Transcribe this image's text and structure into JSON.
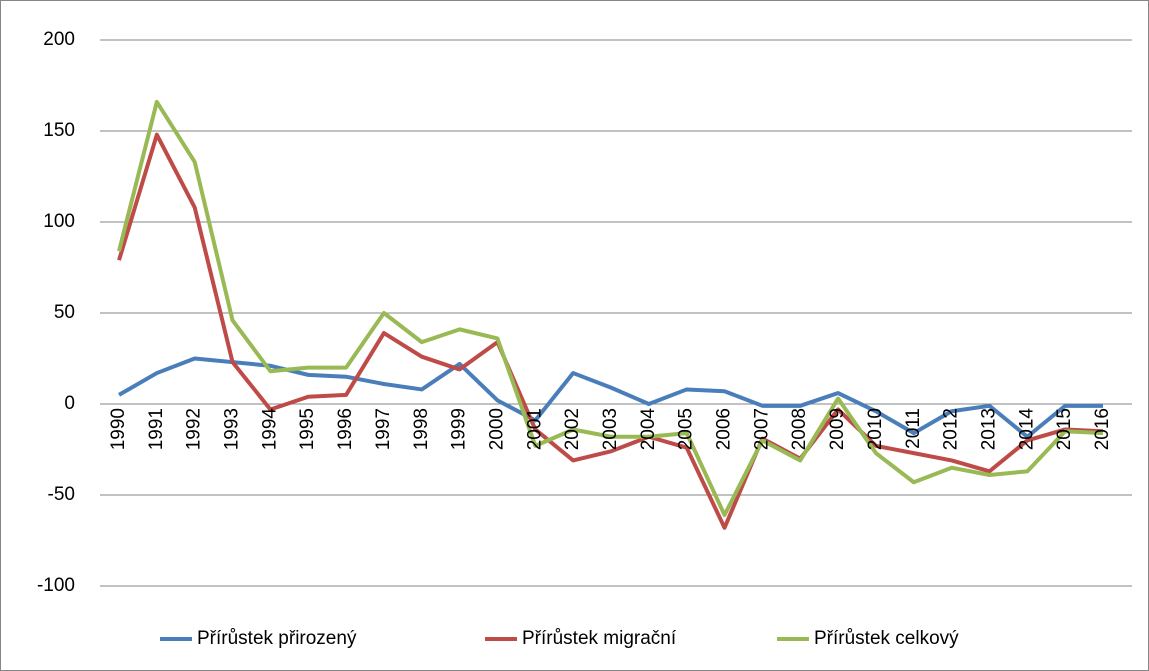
{
  "chart_data": {
    "type": "line",
    "categories": [
      "1990",
      "1991",
      "1992",
      "1993",
      "1994",
      "1995",
      "1996",
      "1997",
      "1998",
      "1999",
      "2000",
      "2001",
      "2002",
      "2003",
      "2004",
      "2005",
      "2006",
      "2007",
      "2008",
      "2009",
      "2010",
      "2011",
      "2012",
      "2013",
      "2014",
      "2015",
      "2016"
    ],
    "series": [
      {
        "name": "Přírůstek přirozený",
        "color": "#4a7ebb",
        "values": [
          5,
          17,
          25,
          23,
          21,
          16,
          15,
          11,
          8,
          22,
          2,
          -9,
          17,
          9,
          0,
          8,
          7,
          -1,
          -1,
          6,
          -4,
          -16,
          -4,
          -1,
          -18,
          -1,
          -1
        ]
      },
      {
        "name": "Přírůstek migrační",
        "color": "#be4b48",
        "values": [
          79,
          148,
          108,
          23,
          -3,
          4,
          5,
          39,
          26,
          19,
          34,
          -14,
          -31,
          -26,
          -18,
          -24,
          -68,
          -19,
          -30,
          -3,
          -23,
          -27,
          -31,
          -37,
          -20,
          -14,
          -15
        ]
      },
      {
        "name": "Přírůstek celkový",
        "color": "#98b954",
        "values": [
          84,
          166,
          133,
          46,
          18,
          20,
          20,
          50,
          34,
          41,
          36,
          -23,
          -14,
          -18,
          -18,
          -16,
          -61,
          -20,
          -31,
          3,
          -27,
          -43,
          -35,
          -39,
          -37,
          -15,
          -16
        ]
      }
    ],
    "ylim": [
      -100,
      200
    ],
    "yticks": [
      -100,
      -50,
      0,
      50,
      100,
      150,
      200
    ],
    "grid": true,
    "legend": "bottom"
  }
}
